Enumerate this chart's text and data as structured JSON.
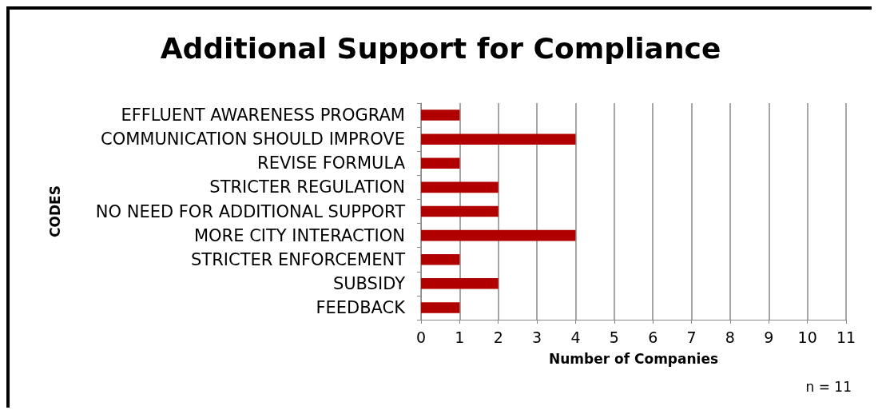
{
  "chart_data": {
    "type": "bar",
    "orientation": "horizontal",
    "title": "Additional Support for Compliance",
    "xlabel": "Number of Companies",
    "ylabel": "CODES",
    "categories": [
      "EFFLUENT AWARENESS PROGRAM",
      "COMMUNICATION SHOULD IMPROVE",
      "REVISE FORMULA",
      "STRICTER REGULATION",
      "NO NEED FOR ADDITIONAL SUPPORT",
      "MORE CITY INTERACTION",
      "STRICTER ENFORCEMENT",
      "SUBSIDY",
      "FEEDBACK"
    ],
    "values": [
      1,
      4,
      1,
      2,
      2,
      4,
      1,
      2,
      1
    ],
    "color": "#b00000",
    "xlim": [
      0,
      11
    ],
    "xticks": [
      0,
      1,
      2,
      3,
      4,
      5,
      6,
      7,
      8,
      9,
      10,
      11
    ],
    "grid": "x",
    "annotations": [
      "n = 11"
    ]
  }
}
